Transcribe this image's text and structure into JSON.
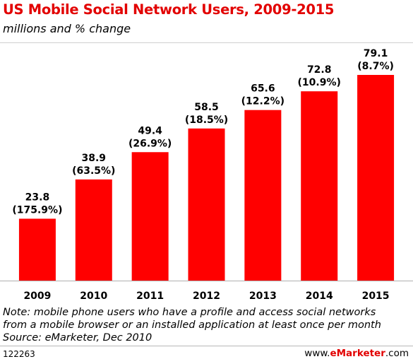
{
  "header": {
    "title": "US Mobile Social Network Users, 2009-2015",
    "subtitle": "millions and % change"
  },
  "chart_data": {
    "type": "bar",
    "categories": [
      "2009",
      "2010",
      "2011",
      "2012",
      "2013",
      "2014",
      "2015"
    ],
    "values": [
      23.8,
      38.9,
      49.4,
      58.5,
      65.6,
      72.8,
      79.1
    ],
    "value_labels": [
      "23.8",
      "38.9",
      "49.4",
      "58.5",
      "65.6",
      "72.8",
      "79.1"
    ],
    "change_labels": [
      "(175.9%)",
      "(63.5%)",
      "(26.9%)",
      "(18.5%)",
      "(12.2%)",
      "(10.9%)",
      "(8.7%)"
    ],
    "title": "US Mobile Social Network Users, 2009-2015",
    "xlabel": "",
    "ylabel": "",
    "ylim": [
      0,
      79.1
    ],
    "grid": false,
    "bar_color": "#ff0000"
  },
  "notes": {
    "line1": "Note: mobile phone users who have a profile and access social networks",
    "line2": "from a mobile browser or an installed application at least once per month",
    "line3": "Source: eMarketer, Dec 2010"
  },
  "footer": {
    "id": "122263",
    "site_prefix": "www.",
    "site_brand": "eMarketer",
    "site_suffix": ".com",
    "brand_color": "#e20000"
  }
}
